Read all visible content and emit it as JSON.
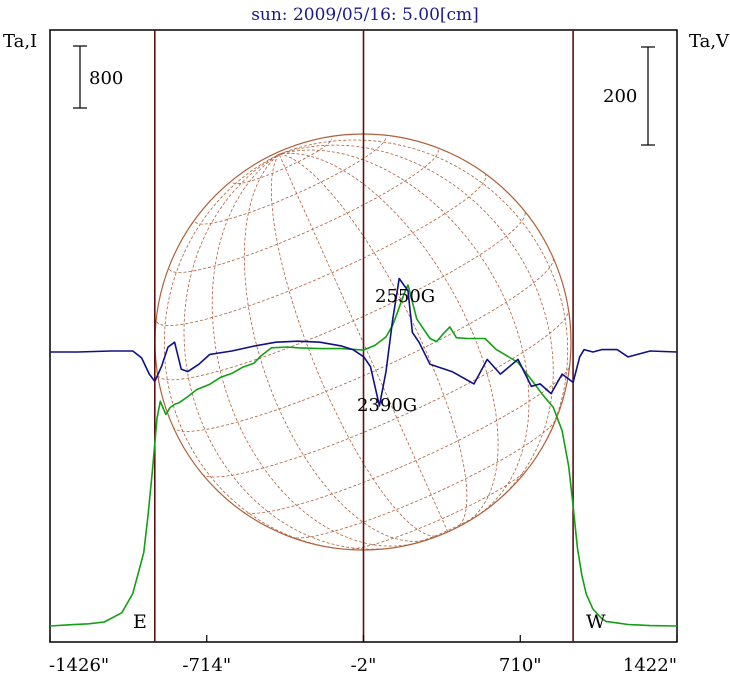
{
  "title": "sun: 2009/05/16: 5.00[cm]",
  "left_axis_label": "Ta,I",
  "right_axis_label": "Ta,V",
  "scale_left_label": "800",
  "scale_right_label": "200",
  "label_east": "E",
  "label_west": "W",
  "annotation_top": "2550G",
  "annotation_bottom": "2390G",
  "chart_data": {
    "type": "line",
    "title": "sun: 2009/05/16: 5.00[cm]",
    "xlabel": "",
    "ylabel_left": "Ta,I",
    "ylabel_right": "Ta,V",
    "x_ticks": [
      "-1426\"",
      "-714\"",
      "-2\"",
      "710\"",
      "1422\""
    ],
    "x_tick_values": [
      -1426,
      -714,
      -2,
      710,
      1422
    ],
    "xlim": [
      -1426,
      1422
    ],
    "vertical_markers": [
      -950,
      -2,
      950
    ],
    "scale_bars": [
      {
        "axis": "left",
        "value": 800
      },
      {
        "axis": "right",
        "value": 200
      }
    ],
    "annotations": [
      {
        "text": "2550G",
        "x": 200
      },
      {
        "text": "2390G",
        "x": 200
      }
    ],
    "colors": {
      "stokes_i": "#14a014",
      "stokes_v": "#101088",
      "markers": "#5a1010",
      "disk": "#b0603a",
      "title": "#1a1a8a"
    },
    "series": [
      {
        "color": "#14a014",
        "axis": "left",
        "x": [
          -1426,
          -1340,
          -1250,
          -1180,
          -1100,
          -1050,
          -1000,
          -980,
          -960,
          -940,
          -925,
          -900,
          -880,
          -860,
          -840,
          -800,
          -760,
          -700,
          -650,
          -600,
          -550,
          -500,
          -470,
          -420,
          -350,
          -300,
          -200,
          -100,
          -2,
          50,
          100,
          130,
          150,
          180,
          200,
          240,
          300,
          330,
          360,
          390,
          420,
          470,
          550,
          600,
          700,
          760,
          810,
          860,
          900,
          930,
          950,
          970,
          990,
          1010,
          1040,
          1080,
          1100,
          1150,
          1200,
          1300,
          1422
        ],
        "y": [
          0,
          15,
          28,
          52,
          170,
          420,
          950,
          1450,
          2030,
          2680,
          2900,
          2730,
          2820,
          2860,
          2880,
          2960,
          3050,
          3120,
          3210,
          3260,
          3340,
          3390,
          3480,
          3590,
          3600,
          3590,
          3580,
          3580,
          3560,
          3620,
          3730,
          3880,
          4030,
          4270,
          4400,
          3960,
          3710,
          3670,
          3770,
          3860,
          3720,
          3710,
          3710,
          3570,
          3400,
          3180,
          2990,
          2820,
          2520,
          2060,
          1550,
          1000,
          650,
          410,
          220,
          95,
          60,
          40,
          20,
          5,
          0
        ]
      },
      {
        "color": "#101088",
        "axis": "right",
        "x": [
          -1426,
          -1300,
          -1150,
          -1050,
          -1010,
          -975,
          -950,
          -920,
          -890,
          -860,
          -830,
          -800,
          -750,
          -700,
          -600,
          -500,
          -400,
          -300,
          -200,
          -100,
          -50,
          0,
          30,
          70,
          100,
          130,
          160,
          200,
          220,
          250,
          300,
          400,
          500,
          560,
          620,
          700,
          760,
          800,
          850,
          900,
          950,
          980,
          1000,
          1040,
          1080,
          1150,
          1200,
          1300,
          1422
        ],
        "y": [
          0,
          0,
          2,
          2,
          -12,
          -45,
          -60,
          -30,
          10,
          20,
          -35,
          -40,
          -25,
          -5,
          2,
          12,
          20,
          22,
          20,
          12,
          5,
          -10,
          -30,
          -110,
          -40,
          65,
          150,
          125,
          40,
          20,
          -25,
          -40,
          -65,
          -15,
          -45,
          -15,
          -70,
          -65,
          -85,
          -45,
          -62,
          -10,
          5,
          0,
          5,
          5,
          -10,
          2,
          0
        ]
      }
    ]
  }
}
